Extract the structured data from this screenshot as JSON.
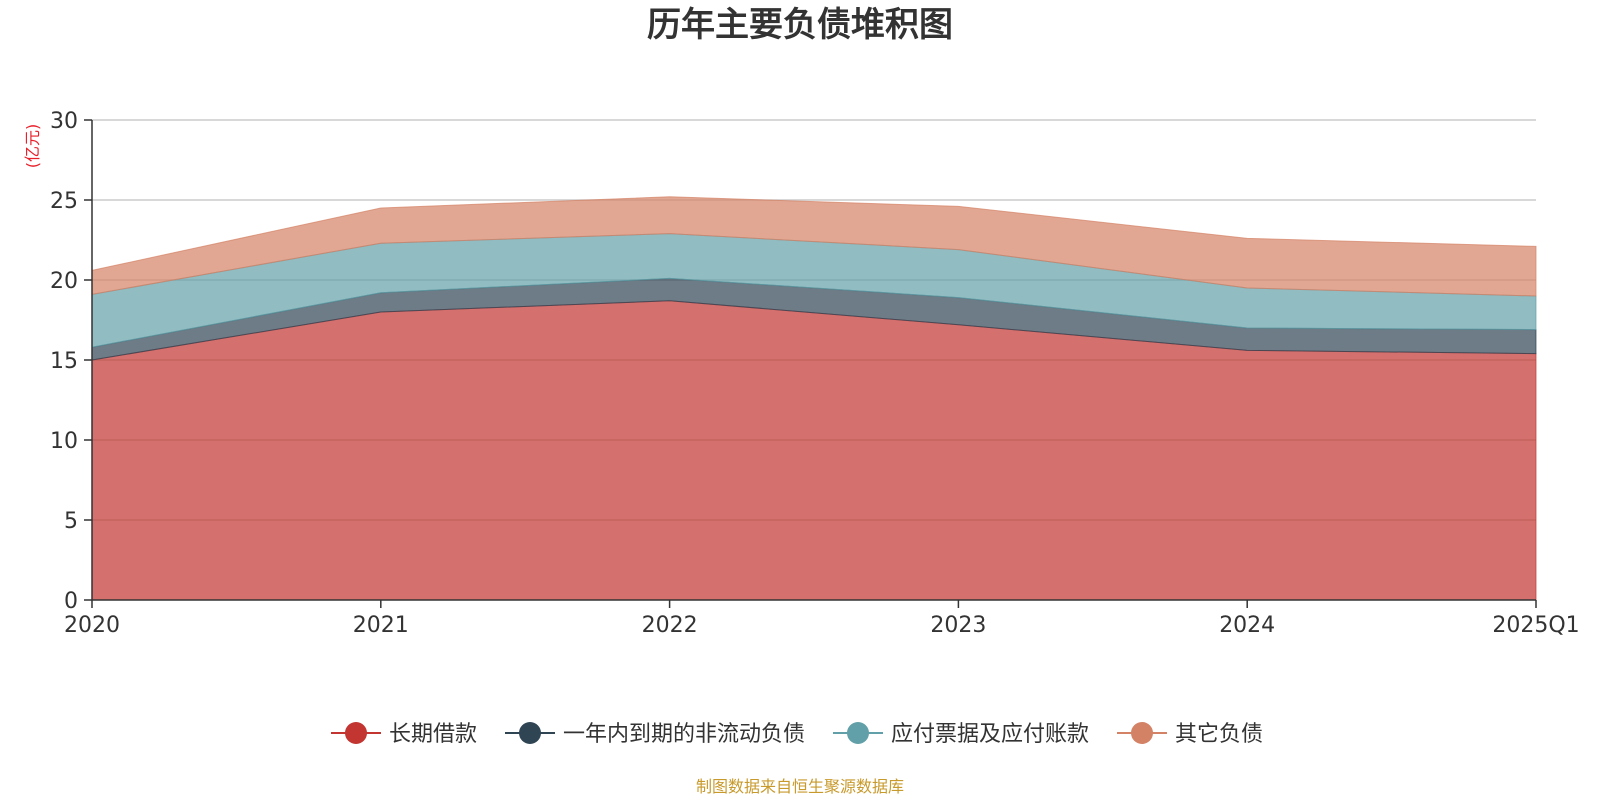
{
  "chart_data": {
    "type": "area",
    "stacked": true,
    "title": "历年主要负债堆积图",
    "unit_label": "(亿元)",
    "categories": [
      "2020",
      "2021",
      "2022",
      "2023",
      "2024",
      "2025Q1"
    ],
    "ylim": [
      0,
      30
    ],
    "y_ticks": [
      0,
      5,
      10,
      15,
      20,
      25,
      30
    ],
    "grid": true,
    "legend_position": "bottom",
    "series": [
      {
        "name": "长期借款",
        "values": [
          15.0,
          18.0,
          18.7,
          17.2,
          15.6,
          15.4
        ],
        "color": "#c23531"
      },
      {
        "name": "一年内到期的非流动负债",
        "values": [
          0.8,
          1.2,
          1.4,
          1.7,
          1.4,
          1.5
        ],
        "color": "#2f4554"
      },
      {
        "name": "应付票据及应付账款",
        "values": [
          3.3,
          3.1,
          2.8,
          3.0,
          2.5,
          2.1
        ],
        "color": "#61a0a8"
      },
      {
        "name": "其它负债",
        "values": [
          1.5,
          2.2,
          2.3,
          2.7,
          3.1,
          3.1
        ],
        "color": "#d48265"
      }
    ],
    "source": "制图数据来自恒生聚源数据库",
    "colors": {
      "unit": "#e8202a",
      "source": "#c89a2c",
      "grid": "#cccccc",
      "axis": "#333333"
    }
  }
}
